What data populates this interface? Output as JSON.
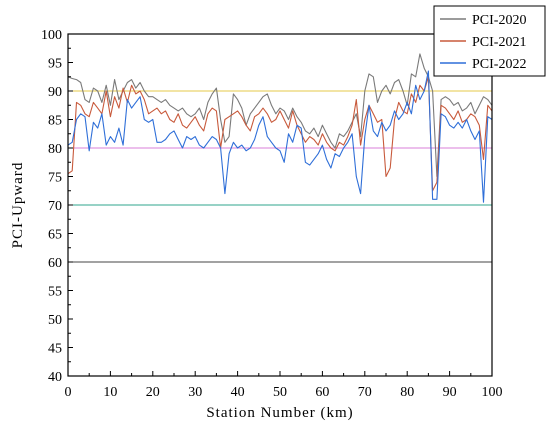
{
  "chart_data": {
    "type": "line",
    "xlabel": "Station Number (km)",
    "ylabel": "PCI-Upward",
    "xlim": [
      0,
      100
    ],
    "ylim": [
      40,
      100
    ],
    "x_ticks": [
      "0",
      "10",
      "20",
      "30",
      "40",
      "50",
      "60",
      "70",
      "80",
      "90",
      "100"
    ],
    "y_ticks": [
      "40",
      "45",
      "50",
      "55",
      "60",
      "65",
      "70",
      "75",
      "80",
      "85",
      "90",
      "95",
      "100"
    ],
    "legend_position": "top-right",
    "reference_lines": [
      {
        "y": 90,
        "color": "#e6c84a"
      },
      {
        "y": 80,
        "color": "#d87fd8"
      },
      {
        "y": 70,
        "color": "#2fa58c"
      },
      {
        "y": 60,
        "color": "#444444"
      }
    ],
    "series": [
      {
        "name": "PCI-2020",
        "color": "#7a7a7a",
        "x": [
          0,
          1,
          2,
          3,
          4,
          5,
          6,
          7,
          8,
          9,
          10,
          11,
          12,
          13,
          14,
          15,
          16,
          17,
          18,
          19,
          20,
          21,
          22,
          23,
          24,
          25,
          26,
          27,
          28,
          29,
          30,
          31,
          32,
          33,
          34,
          35,
          36,
          37,
          38,
          39,
          40,
          41,
          42,
          43,
          44,
          45,
          46,
          47,
          48,
          49,
          50,
          51,
          52,
          53,
          54,
          55,
          56,
          57,
          58,
          59,
          60,
          61,
          62,
          63,
          64,
          65,
          66,
          67,
          68,
          69,
          70,
          71,
          72,
          73,
          74,
          75,
          76,
          77,
          78,
          79,
          80,
          81,
          82,
          83,
          84,
          85,
          86,
          87,
          88,
          89,
          90,
          91,
          92,
          93,
          94,
          95,
          96,
          97,
          98,
          99,
          100
        ],
        "values": [
          92.5,
          92.2,
          92.0,
          91.5,
          88.5,
          88.0,
          90.5,
          90.0,
          88.0,
          91.0,
          87.5,
          92.0,
          88.5,
          90.0,
          91.5,
          92.0,
          90.5,
          91.5,
          90.0,
          89.0,
          89.0,
          88.5,
          88.0,
          88.5,
          87.5,
          87.0,
          86.5,
          87.0,
          86.0,
          85.5,
          86.0,
          87.0,
          85.0,
          88.0,
          89.5,
          90.5,
          85.0,
          81.0,
          82.0,
          89.5,
          88.5,
          87.0,
          84.0,
          86.0,
          87.0,
          88.0,
          89.0,
          89.5,
          87.5,
          86.0,
          87.0,
          86.5,
          85.0,
          87.0,
          85.5,
          84.5,
          83.0,
          82.5,
          83.5,
          82.0,
          84.0,
          82.5,
          81.0,
          80.0,
          82.5,
          82.0,
          83.0,
          84.5,
          86.0,
          82.0,
          90.0,
          93.0,
          92.5,
          88.0,
          90.0,
          91.0,
          89.5,
          91.5,
          92.0,
          90.0,
          87.5,
          93.0,
          92.5,
          96.5,
          94.0,
          92.5,
          90.0,
          75.0,
          88.5,
          89.0,
          88.5,
          87.5,
          88.0,
          86.5,
          87.0,
          88.0,
          86.0,
          87.5,
          89.0,
          88.5,
          87.5
        ]
      },
      {
        "name": "PCI-2021",
        "color": "#c85a3c",
        "x": [
          0,
          1,
          2,
          3,
          4,
          5,
          6,
          7,
          8,
          9,
          10,
          11,
          12,
          13,
          14,
          15,
          16,
          17,
          18,
          19,
          20,
          21,
          22,
          23,
          24,
          25,
          26,
          27,
          28,
          29,
          30,
          31,
          32,
          33,
          34,
          35,
          36,
          37,
          38,
          39,
          40,
          41,
          42,
          43,
          44,
          45,
          46,
          47,
          48,
          49,
          50,
          51,
          52,
          53,
          54,
          55,
          56,
          57,
          58,
          59,
          60,
          61,
          62,
          63,
          64,
          65,
          66,
          67,
          68,
          69,
          70,
          71,
          72,
          73,
          74,
          75,
          76,
          77,
          78,
          79,
          80,
          81,
          82,
          83,
          84,
          85,
          86,
          87,
          88,
          89,
          90,
          91,
          92,
          93,
          94,
          95,
          96,
          97,
          98,
          99,
          100
        ],
        "values": [
          75.5,
          76.0,
          88.0,
          87.5,
          86.0,
          85.5,
          88.0,
          87.0,
          86.0,
          90.0,
          85.5,
          89.0,
          87.0,
          90.5,
          88.0,
          91.0,
          89.5,
          90.0,
          88.5,
          86.0,
          86.5,
          87.0,
          86.0,
          86.5,
          85.0,
          84.5,
          86.0,
          84.0,
          83.5,
          84.5,
          85.5,
          84.0,
          83.0,
          86.0,
          87.0,
          86.5,
          80.0,
          85.0,
          85.5,
          86.0,
          86.5,
          85.5,
          84.0,
          83.0,
          85.5,
          86.0,
          87.0,
          86.0,
          84.5,
          85.0,
          86.5,
          85.0,
          83.5,
          86.5,
          84.0,
          82.5,
          81.0,
          82.0,
          81.5,
          80.5,
          82.5,
          81.0,
          80.0,
          79.5,
          81.0,
          80.5,
          82.0,
          84.0,
          88.5,
          80.5,
          85.0,
          87.5,
          86.0,
          84.5,
          85.0,
          75.0,
          76.5,
          85.0,
          88.0,
          86.5,
          86.0,
          89.5,
          88.0,
          91.0,
          90.0,
          92.5,
          72.5,
          74.0,
          87.5,
          87.0,
          86.0,
          85.0,
          86.5,
          84.5,
          85.0,
          86.0,
          85.5,
          84.0,
          78.0,
          87.5,
          86.5
        ]
      },
      {
        "name": "PCI-2022",
        "color": "#2f6fd8",
        "x": [
          0,
          1,
          2,
          3,
          4,
          5,
          6,
          7,
          8,
          9,
          10,
          11,
          12,
          13,
          14,
          15,
          16,
          17,
          18,
          19,
          20,
          21,
          22,
          23,
          24,
          25,
          26,
          27,
          28,
          29,
          30,
          31,
          32,
          33,
          34,
          35,
          36,
          37,
          38,
          39,
          40,
          41,
          42,
          43,
          44,
          45,
          46,
          47,
          48,
          49,
          50,
          51,
          52,
          53,
          54,
          55,
          56,
          57,
          58,
          59,
          60,
          61,
          62,
          63,
          64,
          65,
          66,
          67,
          68,
          69,
          70,
          71,
          72,
          73,
          74,
          75,
          76,
          77,
          78,
          79,
          80,
          81,
          82,
          83,
          84,
          85,
          86,
          87,
          88,
          89,
          90,
          91,
          92,
          93,
          94,
          95,
          96,
          97,
          98,
          99,
          100
        ],
        "values": [
          80.5,
          81.0,
          85.0,
          86.0,
          85.5,
          79.5,
          84.5,
          83.5,
          86.0,
          80.5,
          82.0,
          81.0,
          83.5,
          80.5,
          88.5,
          87.0,
          88.0,
          89.0,
          85.0,
          84.5,
          85.0,
          81.0,
          81.0,
          81.5,
          82.5,
          83.0,
          81.5,
          80.0,
          82.0,
          81.5,
          82.0,
          80.5,
          80.0,
          81.0,
          82.0,
          81.5,
          80.0,
          72.0,
          79.0,
          81.0,
          80.0,
          80.5,
          79.5,
          80.0,
          81.5,
          84.0,
          85.5,
          82.0,
          81.0,
          80.0,
          79.5,
          77.5,
          82.5,
          81.0,
          84.0,
          83.5,
          77.5,
          77.0,
          78.0,
          79.0,
          80.5,
          78.0,
          76.5,
          79.0,
          78.5,
          80.0,
          81.0,
          82.5,
          75.0,
          72.0,
          82.0,
          87.5,
          83.0,
          82.0,
          84.5,
          83.0,
          84.0,
          86.5,
          85.0,
          86.0,
          88.0,
          86.0,
          91.0,
          88.5,
          90.0,
          93.5,
          71.0,
          71.0,
          86.0,
          85.5,
          84.0,
          83.5,
          84.5,
          83.5,
          85.0,
          83.0,
          81.5,
          83.0,
          70.5,
          85.5,
          85.0
        ]
      }
    ]
  }
}
